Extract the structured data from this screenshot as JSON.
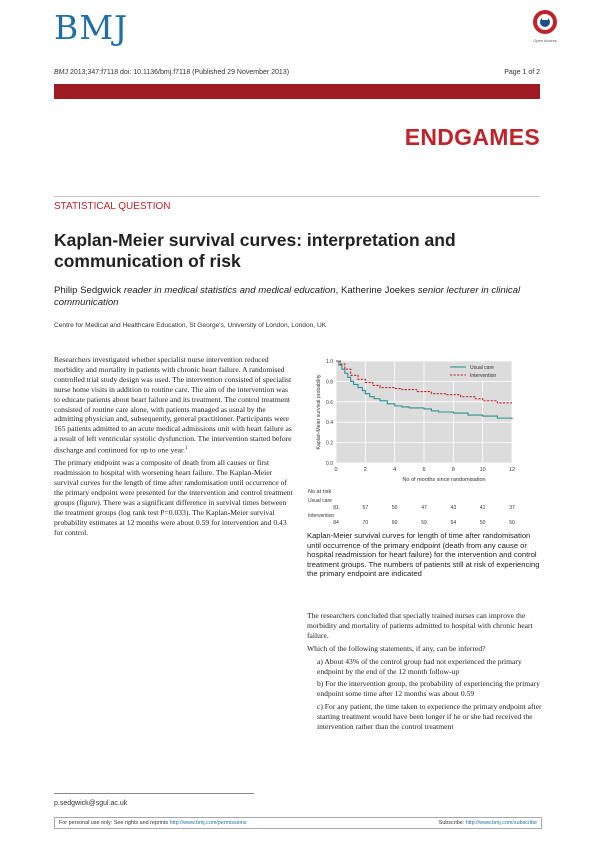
{
  "header": {
    "logo": "BMJ",
    "seal_text": "Open Access",
    "citation_journal": "BMJ",
    "citation_rest": " 2013;347:f7118 doi: 10.1136/bmj.f7118 (Published 29 November 2013)",
    "page": "Page 1 of 2",
    "section": "ENDGAMES"
  },
  "article": {
    "category": "STATISTICAL QUESTION",
    "title": "Kaplan-Meier survival curves: interpretation and communication of risk",
    "author1_name": "Philip Sedgwick",
    "author1_role": "reader in medical statistics and medical education",
    "author_sep": ", ",
    "author2_name": "Katherine Joekes",
    "author2_role": "senior lecturer in clinical communication",
    "affiliation": "Centre for Medical and Healthcare Education, St George's, University of London, London, UK"
  },
  "body": {
    "p1": "Researchers investigated whether specialist nurse intervention reduced morbidity and mortality in patients with chronic heart failure. A randomised controlled trial study design was used. The intervention consisted of specialist nurse home visits in addition to routine care. The aim of the intervention was to educate patients about heart failure and its treatment. The control treatment consisted of routine care alone, with patients managed as usual by the admitting physician and, subsequently, general practitioner. Participants were 165 patients admitted to an acute medical admissions unit with heart failure as a result of left ventricular systolic dysfunction. The intervention started before discharge and continued for up to one year.",
    "p1_ref": "1",
    "p2": "The primary endpoint was a composite of death from all causes or first readmission to hospital with worsening heart failure. The Kaplan-Meier survival curves for the length of time after randomisation until occurrence of the primary endpoint were presented for the intervention and control treatment groups (figure). There was a significant difference in survival times between the treatment groups (log rank test P=0.033). The Kaplan-Meier survival probability estimates at 12 months were about 0.59 for intervention and 0.43 for control.",
    "caption": "Kaplan-Meier survival curves for length of time after randomisation until occurrence of the primary endpoint (death from any cause or hospital readmission for heart failure) for the intervention and control treatment groups. The numbers of patients still at risk of experiencing the primary endpoint are indicated",
    "r1": "The researchers concluded that specially trained nurses can improve the morbidity and mortality of patients admitted to hospital with chronic heart failure.",
    "r2": "Which of the following statements, if any, can be inferred?",
    "stmt_a": "a) About 43% of the control group had not experienced the primary endpoint by the end of the 12 month follow-up",
    "stmt_b": "b) For the intervention group, the probability of experiencing the primary endpoint some time after 12 months was about 0.59",
    "stmt_c": "c) For any patient, the time taken to experience the primary endpoint after starting treatment would have been longer if he or she had received the intervention rather than the control treatment"
  },
  "footer": {
    "email": "p.sedgwick@sgul.ac.uk",
    "left_text": "For personal use only: See rights and reprints ",
    "left_link": "http://www.bmj.com/permissions",
    "right_text": "Subscribe: ",
    "right_link": "http://www.bmj.com/subscribe"
  },
  "colors": {
    "accent_red": "#c0242b",
    "bar_red": "#9e1b22",
    "control_line": "#2f8f8f",
    "intervention_line": "#c0242b"
  },
  "chart_data": {
    "type": "line",
    "xlabel": "No of months since randomisation",
    "ylabel": "Kaplan-Meier survival probability",
    "xlim": [
      0,
      12
    ],
    "ylim": [
      0,
      1.0
    ],
    "xticks": [
      0,
      2,
      4,
      6,
      8,
      10,
      12
    ],
    "yticks": [
      0,
      0.2,
      0.4,
      0.6,
      0.8,
      1.0
    ],
    "legend_position": "top-right",
    "step": true,
    "series": [
      {
        "name": "Usual care",
        "color": "#2f8f8f",
        "dash": false,
        "x": [
          0,
          0.2,
          0.4,
          0.6,
          0.8,
          1.0,
          1.2,
          1.5,
          1.8,
          2.0,
          2.3,
          2.6,
          3.0,
          3.5,
          4.0,
          4.5,
          5.0,
          6.0,
          6.5,
          7.0,
          8.0,
          9.0,
          10.0,
          11.0,
          12.0
        ],
        "y": [
          1.0,
          0.96,
          0.92,
          0.88,
          0.84,
          0.8,
          0.77,
          0.74,
          0.71,
          0.68,
          0.65,
          0.63,
          0.61,
          0.58,
          0.56,
          0.55,
          0.54,
          0.53,
          0.51,
          0.5,
          0.49,
          0.47,
          0.46,
          0.44,
          0.43
        ]
      },
      {
        "name": "Intervention",
        "color": "#c0242b",
        "dash": true,
        "x": [
          0,
          0.3,
          0.6,
          1.0,
          1.5,
          2.0,
          2.5,
          3.0,
          4.0,
          4.5,
          5.5,
          6.5,
          7.5,
          8.5,
          9.5,
          10.0,
          11.0,
          12.0
        ],
        "y": [
          1.0,
          0.97,
          0.92,
          0.86,
          0.82,
          0.79,
          0.76,
          0.74,
          0.73,
          0.72,
          0.7,
          0.68,
          0.67,
          0.65,
          0.63,
          0.61,
          0.59,
          0.59
        ]
      }
    ],
    "at_risk_title": "No at risk",
    "at_risk": [
      {
        "label": "Usual care",
        "values": [
          "81",
          "57",
          "50",
          "47",
          "43",
          "41",
          "37"
        ]
      },
      {
        "label": "Intervention",
        "values": [
          "84",
          "70",
          "60",
          "59",
          "54",
          "50",
          "50"
        ]
      }
    ]
  }
}
